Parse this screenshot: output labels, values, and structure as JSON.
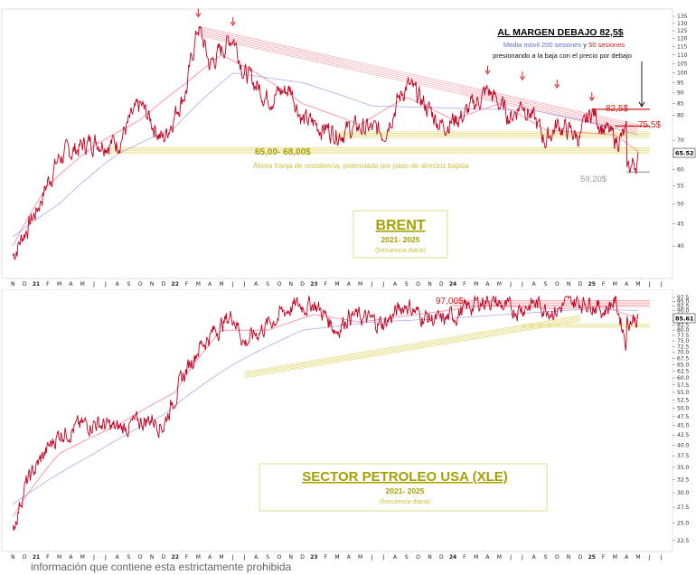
{
  "colors": {
    "price": "#c00020",
    "ma50": "#ff6b8b",
    "ma200": "#9aa0e6",
    "resistance_band": "#f3a6ad",
    "support_band": "#e7e08a",
    "accent_red": "#d01c1c",
    "olive": "#a6a000",
    "blue_text": "#5a6fd6",
    "red_text": "#d01c1c",
    "gray_text": "#9a9a9a",
    "grid": "#eeeeee"
  },
  "footer": {
    "text": "información que contiene esta estrictamente prohibida"
  },
  "chart_data": [
    {
      "type": "line",
      "scale": "log",
      "ylim": [
        35,
        135
      ],
      "yticks": [
        40,
        45,
        50,
        55,
        60,
        65,
        70,
        80,
        85,
        90,
        95,
        100,
        105,
        110,
        115,
        120,
        125,
        130,
        135
      ],
      "last_value_label": "65.52",
      "x_labels": [
        "N",
        "D",
        "21",
        "F",
        "M",
        "A",
        "M",
        "J",
        "J",
        "A",
        "S",
        "O",
        "N",
        "D",
        "22",
        "F",
        "M",
        "A",
        "M",
        "J",
        "J",
        "A",
        "S",
        "O",
        "N",
        "D",
        "23",
        "F",
        "M",
        "A",
        "M",
        "J",
        "J",
        "A",
        "S",
        "O",
        "N",
        "D",
        "24",
        "F",
        "M",
        "A",
        "M",
        "J",
        "J",
        "A",
        "S",
        "O",
        "N",
        "D",
        "25",
        "F",
        "M",
        "A",
        "M",
        "J",
        "J"
      ],
      "series": [
        {
          "name": "Brent",
          "x": [
            "2020-11",
            "2021-01",
            "2021-03",
            "2021-06",
            "2021-08",
            "2021-10",
            "2021-12",
            "2022-02",
            "2022-03",
            "2022-04",
            "2022-06",
            "2022-07",
            "2022-09",
            "2022-11",
            "2022-12",
            "2023-03",
            "2023-05",
            "2023-07",
            "2023-09",
            "2023-10",
            "2023-12",
            "2024-02",
            "2024-04",
            "2024-06",
            "2024-07",
            "2024-09",
            "2024-10",
            "2024-12",
            "2025-01",
            "2025-02",
            "2025-03",
            "2025-04",
            "2025-04",
            "2025-05",
            "2025-05"
          ],
          "values": [
            38,
            48,
            64,
            70,
            69,
            84,
            70,
            92,
            128,
            104,
            122,
            100,
            88,
            92,
            78,
            73,
            75,
            73,
            94,
            88,
            76,
            80,
            91,
            79,
            86,
            70,
            76,
            71,
            82,
            75,
            70,
            72,
            60,
            63,
            65.5
          ]
        },
        {
          "name": "Media móvil 200 sesiones",
          "role": "ma200",
          "x": [
            "2020-11",
            "2021-03",
            "2021-08",
            "2022-01",
            "2022-06",
            "2022-12",
            "2023-06",
            "2024-01",
            "2024-08",
            "2025-01",
            "2025-05"
          ],
          "values": [
            42,
            50,
            65,
            75,
            100,
            95,
            84,
            83,
            82,
            77,
            72
          ]
        },
        {
          "name": "50 sesiones",
          "role": "ma50",
          "x": [
            "2020-11",
            "2021-02",
            "2021-06",
            "2021-10",
            "2022-02",
            "2022-05",
            "2022-08",
            "2022-12",
            "2023-05",
            "2023-09",
            "2024-01",
            "2024-05",
            "2024-09",
            "2024-12",
            "2025-03",
            "2025-05"
          ],
          "values": [
            40,
            55,
            68,
            78,
            95,
            110,
            100,
            85,
            76,
            88,
            78,
            85,
            74,
            73,
            72,
            66
          ]
        }
      ],
      "annotations": {
        "title": "BRENT",
        "period": "2021- 2025",
        "frequency": "(frecuencia diaria)",
        "headline": "AL MARGEN DEBAJO 82,5$",
        "ma_note_blue": "Media móvil 200 sesiones",
        "ma_note_and": " y ",
        "ma_note_red": "50 sesiones",
        "pressure_note": "presionando a la baja con el precio por debajo",
        "level_825": "82,5$",
        "level_755": "75,5$",
        "support_zone": "65,00- 68,00$",
        "support_note": "Ahora franja de resistencia, potenciada por paso de directriz bajista",
        "low_level": "59,20$"
      }
    },
    {
      "type": "line",
      "scale": "log",
      "ylim": [
        22,
        98
      ],
      "yticks": [
        22.5,
        25.0,
        27.5,
        30.0,
        32.5,
        35.0,
        37.5,
        40.0,
        42.5,
        45.0,
        47.5,
        50.0,
        52.5,
        55.0,
        57.5,
        60.0,
        62.5,
        65.0,
        67.5,
        70.0,
        72.5,
        75.0,
        77.5,
        80.0,
        82.5,
        85.0,
        87.5,
        90.0,
        92.5,
        95.0,
        97.5
      ],
      "last_value_label": "85.61",
      "x_labels": [
        "N",
        "D",
        "21",
        "F",
        "M",
        "A",
        "M",
        "J",
        "J",
        "A",
        "S",
        "O",
        "N",
        "D",
        "22",
        "F",
        "M",
        "A",
        "M",
        "J",
        "J",
        "A",
        "S",
        "O",
        "N",
        "D",
        "23",
        "F",
        "M",
        "A",
        "M",
        "J",
        "J",
        "A",
        "S",
        "O",
        "N",
        "D",
        "24",
        "F",
        "M",
        "A",
        "M",
        "J",
        "J",
        "A",
        "S",
        "O",
        "N",
        "D",
        "25",
        "F",
        "M",
        "A",
        "M",
        "J",
        "J"
      ],
      "series": [
        {
          "name": "XLE",
          "x": [
            "2020-11",
            "2020-12",
            "2021-03",
            "2021-06",
            "2021-08",
            "2021-11",
            "2021-12",
            "2022-03",
            "2022-06",
            "2022-07",
            "2022-11",
            "2023-01",
            "2023-03",
            "2023-04",
            "2023-07",
            "2023-09",
            "2023-10",
            "2023-12",
            "2024-04",
            "2024-06",
            "2024-08",
            "2024-10",
            "2024-11",
            "2025-01",
            "2025-02",
            "2025-03",
            "2025-04",
            "2025-04",
            "2025-05"
          ],
          "values": [
            24,
            31,
            43,
            46,
            44,
            47,
            45,
            72,
            88,
            74,
            92,
            94,
            80,
            88,
            83,
            94,
            88,
            84,
            97,
            90,
            94,
            90,
            95,
            95,
            90,
            96,
            74,
            85,
            86
          ]
        },
        {
          "name": "Media móvil 200 sesiones",
          "role": "ma200",
          "x": [
            "2020-11",
            "2021-06",
            "2021-12",
            "2022-06",
            "2022-12",
            "2023-06",
            "2024-01",
            "2024-08",
            "2025-01",
            "2025-05"
          ],
          "values": [
            28,
            38,
            48,
            65,
            80,
            84,
            86,
            89,
            91,
            90
          ]
        },
        {
          "name": "50 sesiones",
          "role": "ma50",
          "x": [
            "2020-11",
            "2021-03",
            "2021-08",
            "2022-01",
            "2022-05",
            "2022-09",
            "2023-01",
            "2023-05",
            "2023-10",
            "2024-04",
            "2024-10",
            "2025-02",
            "2025-05"
          ],
          "values": [
            26,
            38,
            45,
            55,
            80,
            80,
            88,
            84,
            88,
            93,
            91,
            92,
            86
          ]
        }
      ],
      "annotations": {
        "title": "SECTOR PETROLEO USA (XLE)",
        "period": "2021- 2025",
        "frequency": "(frecuencia diaria)",
        "resistance_level": "97,00$"
      }
    }
  ]
}
